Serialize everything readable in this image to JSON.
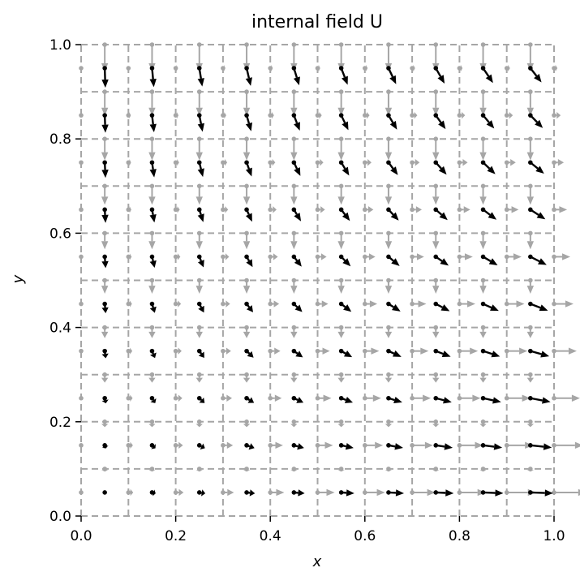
{
  "chart_data": {
    "type": "quiver",
    "title": "internal field U",
    "xlabel": "x",
    "ylabel": "y",
    "xlim": [
      0.0,
      1.0
    ],
    "ylim": [
      0.0,
      1.0
    ],
    "xticks": [
      "0.0",
      "0.2",
      "0.4",
      "0.6",
      "0.8",
      "1.0"
    ],
    "yticks": [
      "0.0",
      "0.2",
      "0.4",
      "0.6",
      "0.8",
      "1.0"
    ],
    "grid": "dashed mesh lines every 0.1",
    "cells_x": [
      0.05,
      0.15,
      0.25,
      0.35,
      0.45,
      0.55,
      0.65,
      0.75,
      0.85,
      0.95
    ],
    "cells_y": [
      0.05,
      0.15,
      0.25,
      0.35,
      0.45,
      0.55,
      0.65,
      0.75,
      0.85,
      0.95
    ],
    "vector_field": "U = (x*(1-y), -(1-x)*y ... approx) : x-component grows with x and shrinks with y, y-component (downward) grows with y",
    "series": [
      {
        "name": "",
        "kind": "cell-centered vectors",
        "color": "#000000"
      },
      {
        "name": "",
        "kind": "face vectors",
        "color": "#a6a6a6"
      }
    ]
  },
  "colors": {
    "cell_arrow": "#000000",
    "face_arrow": "#a6a6a6",
    "grid": "#a6a6a6",
    "axis": "#000000"
  }
}
